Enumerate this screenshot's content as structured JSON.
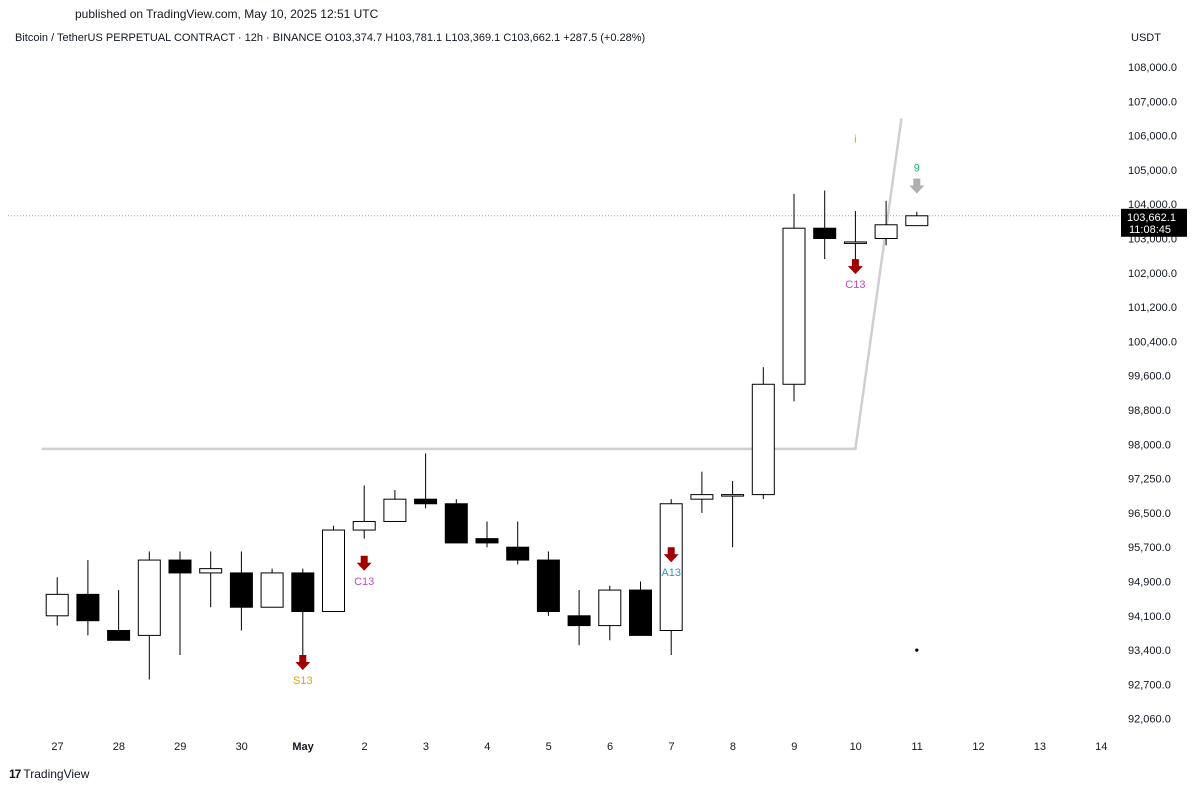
{
  "header": {
    "published": "published on TradingView.com, May 10, 2025 12:51 UTC",
    "symbol_line": "Bitcoin / TetherUS PERPETUAL CONTRACT · 12h · BINANCE  O103,374.7  H103,781.1  L103,369.1  C103,662.1  +287.5 (+0.28%)",
    "currency": "USDT"
  },
  "footer": {
    "brand": "TradingView",
    "brand_mark": "17"
  },
  "colors": {
    "bull_body": "#ffffff",
    "bear_body": "#000000",
    "candle_outline": "#000000",
    "trend_line": "#cfcfcf",
    "arrow_red": "#a00000",
    "arrow_gray": "#b0b0b0",
    "label_purple": "#c050c0",
    "label_orange": "#e8a000",
    "label_blue": "#2a9ac8",
    "label_green": "#20b070",
    "price_tag_bg": "#000000"
  },
  "chart_data": {
    "type": "candlestick",
    "interval": "12h",
    "y_axis_ticks": [
      "108,000.0",
      "107,000.0",
      "106,000.0",
      "105,000.0",
      "104,000.0",
      "103,000.0",
      "102,000.0",
      "101,200.0",
      "100,400.0",
      "99,600.0",
      "98,800.0",
      "98,000.0",
      "97,250.0",
      "96,500.0",
      "95,700.0",
      "94,900.0",
      "94,100.0",
      "93,400.0",
      "92,700.0",
      "92,060.0"
    ],
    "x_axis_labels": [
      "27",
      "28",
      "29",
      "30",
      "May",
      "2",
      "3",
      "4",
      "5",
      "6",
      "7",
      "8",
      "9",
      "10",
      "11",
      "12",
      "13",
      "14"
    ],
    "candles": [
      {
        "t": "Apr 27 00:00",
        "o": 94100,
        "h": 95000,
        "l": 93900,
        "c": 94600
      },
      {
        "t": "Apr 27 12:00",
        "o": 94600,
        "h": 95400,
        "l": 93700,
        "c": 94000
      },
      {
        "t": "Apr 28 00:00",
        "o": 93800,
        "h": 94700,
        "l": 93600,
        "c": 93600
      },
      {
        "t": "Apr 28 12:00",
        "o": 93700,
        "h": 95600,
        "l": 92800,
        "c": 95400
      },
      {
        "t": "Apr 29 00:00",
        "o": 95400,
        "h": 95600,
        "l": 93300,
        "c": 95100
      },
      {
        "t": "Apr 29 12:00",
        "o": 95100,
        "h": 95600,
        "l": 94300,
        "c": 95200
      },
      {
        "t": "Apr 30 00:00",
        "o": 95100,
        "h": 95600,
        "l": 93800,
        "c": 94300
      },
      {
        "t": "Apr 30 12:00",
        "o": 94300,
        "h": 95200,
        "l": 94300,
        "c": 95100
      },
      {
        "t": "May 1 00:00",
        "o": 95100,
        "h": 95200,
        "l": 93000,
        "c": 94200
      },
      {
        "t": "May 1 12:00",
        "o": 94200,
        "h": 96200,
        "l": 94200,
        "c": 96100
      },
      {
        "t": "May 2 00:00",
        "o": 96100,
        "h": 97100,
        "l": 95900,
        "c": 96300
      },
      {
        "t": "May 2 12:00",
        "o": 96300,
        "h": 97000,
        "l": 96300,
        "c": 96800
      },
      {
        "t": "May 3 00:00",
        "o": 96800,
        "h": 97800,
        "l": 96600,
        "c": 96700
      },
      {
        "t": "May 3 12:00",
        "o": 96700,
        "h": 96800,
        "l": 95800,
        "c": 95800
      },
      {
        "t": "May 4 00:00",
        "o": 95900,
        "h": 96300,
        "l": 95700,
        "c": 95800
      },
      {
        "t": "May 4 12:00",
        "o": 95700,
        "h": 96300,
        "l": 95300,
        "c": 95400
      },
      {
        "t": "May 5 00:00",
        "o": 95400,
        "h": 95600,
        "l": 94100,
        "c": 94200
      },
      {
        "t": "May 5 12:00",
        "o": 94100,
        "h": 94700,
        "l": 93500,
        "c": 93900
      },
      {
        "t": "May 6 00:00",
        "o": 93900,
        "h": 94800,
        "l": 93600,
        "c": 94700
      },
      {
        "t": "May 6 12:00",
        "o": 94700,
        "h": 94900,
        "l": 93700,
        "c": 93700
      },
      {
        "t": "May 7 00:00",
        "o": 93800,
        "h": 96800,
        "l": 93300,
        "c": 96700
      },
      {
        "t": "May 7 12:00",
        "o": 96800,
        "h": 97400,
        "l": 96500,
        "c": 96900
      },
      {
        "t": "May 8 00:00",
        "o": 96900,
        "h": 97200,
        "l": 95700,
        "c": 96900
      },
      {
        "t": "May 8 12:00",
        "o": 96900,
        "h": 99800,
        "l": 96800,
        "c": 99400
      },
      {
        "t": "May 9 00:00",
        "o": 99400,
        "h": 104300,
        "l": 99000,
        "c": 103300
      },
      {
        "t": "May 9 12:00",
        "o": 103300,
        "h": 104400,
        "l": 102400,
        "c": 103000
      },
      {
        "t": "May 10 00:00",
        "o": 102900,
        "h": 103800,
        "l": 102300,
        "c": 102900
      },
      {
        "t": "May 10 12:00",
        "o": 103000,
        "h": 104100,
        "l": 102800,
        "c": 103400
      },
      {
        "t": "May 11 00:00",
        "o": 103374.7,
        "h": 103781.1,
        "l": 103369.1,
        "c": 103662.1
      }
    ],
    "trend_line": [
      {
        "t": "Apr 26 18:00",
        "price": 97900
      },
      {
        "t": "May 10 00:00",
        "price": 97900
      },
      {
        "t": "May 10 18:00",
        "price": 106500
      }
    ],
    "current_price": {
      "value": 103662.1,
      "label": "103,662.1",
      "countdown": "11:08:45"
    },
    "annotations": [
      {
        "type": "arrow",
        "color": "red",
        "at": "May 1 00:00",
        "price": 93300,
        "label": "S13",
        "label_color": "orange"
      },
      {
        "type": "arrow",
        "color": "red",
        "at": "May 2 00:00",
        "price": 95500,
        "label": "C13",
        "label_color": "purple"
      },
      {
        "type": "arrow",
        "color": "red",
        "at": "May 7 00:00",
        "price": 95700,
        "label": "A13",
        "label_color": "blue"
      },
      {
        "type": "arrow",
        "color": "red",
        "at": "May 10 00:00",
        "price": 102400,
        "label": "C13",
        "label_color": "purple"
      },
      {
        "type": "arrow",
        "color": "gray",
        "at": "May 11 00:00",
        "price": 104400,
        "label": "9",
        "label_color": "green"
      },
      {
        "type": "marker",
        "color": "orange",
        "at": "May 10 00:00",
        "price": 105800,
        "label": "i"
      },
      {
        "type": "dot",
        "color": "black",
        "at": "May 11 00:00",
        "price": 93400
      }
    ]
  }
}
